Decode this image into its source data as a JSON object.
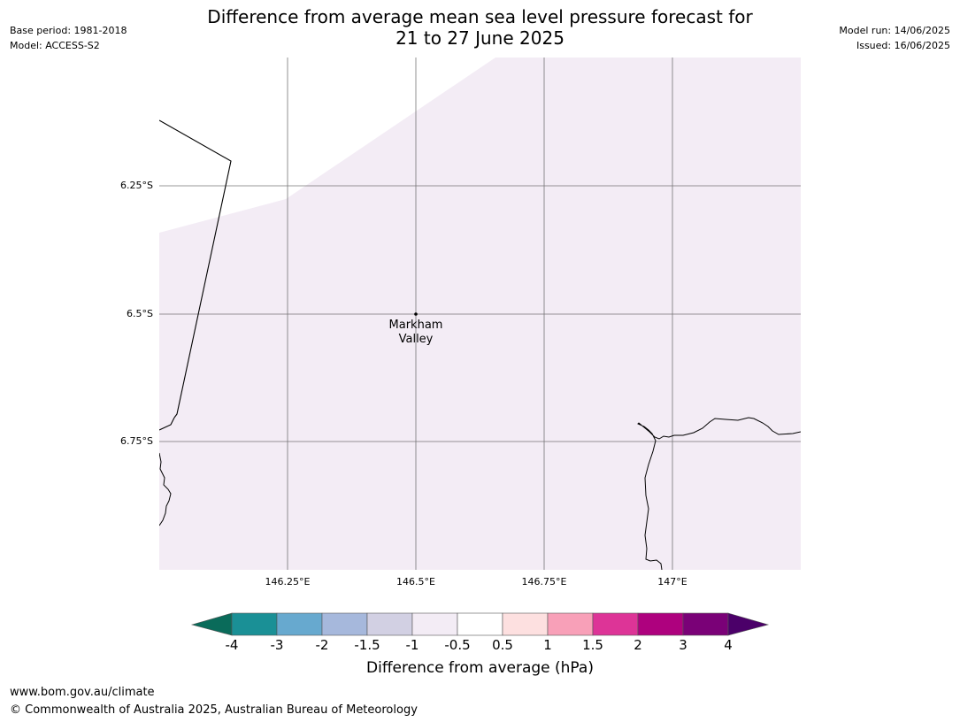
{
  "header": {
    "title_line1": "Difference from average mean sea level pressure forecast for",
    "title_line2": "21 to 27 June 2025",
    "base_period": "Base period: 1981-2018",
    "model": "Model: ACCESS-S2",
    "model_run": "Model run: 14/06/2025",
    "issued": "Issued: 16/06/2025"
  },
  "map": {
    "lat_labels": [
      "6.25°S",
      "6.5°S",
      "6.75°S"
    ],
    "lon_labels": [
      "146.25°E",
      "146.5°E",
      "146.75°E",
      "147°E"
    ],
    "place": {
      "name_line1": "Markham",
      "name_line2": "Valley"
    },
    "fill_color": "#f3ecf5",
    "background_color": "#ffffff",
    "gridline_color": "#555555",
    "coastline_color": "#000000"
  },
  "colorbar": {
    "label": "Difference from average (hPa)",
    "ticks": [
      "-4",
      "-3",
      "-2",
      "-1.5",
      "-1",
      "-0.5",
      "0.5",
      "1",
      "1.5",
      "2",
      "3",
      "4"
    ],
    "low_extend_color": "#0a6b5a",
    "high_extend_color": "#4b0069",
    "colors": [
      "#1a9096",
      "#67a9cf",
      "#a6b8dc",
      "#d2d0e3",
      "#f3ecf5",
      "#ffffff",
      "#fde0e0",
      "#f8a0b8",
      "#dd3497",
      "#ae017e",
      "#7a0177"
    ]
  },
  "footer": {
    "url": "www.bom.gov.au/climate",
    "copyright": "© Commonwealth of Australia 2025, Australian Bureau of Meteorology"
  }
}
